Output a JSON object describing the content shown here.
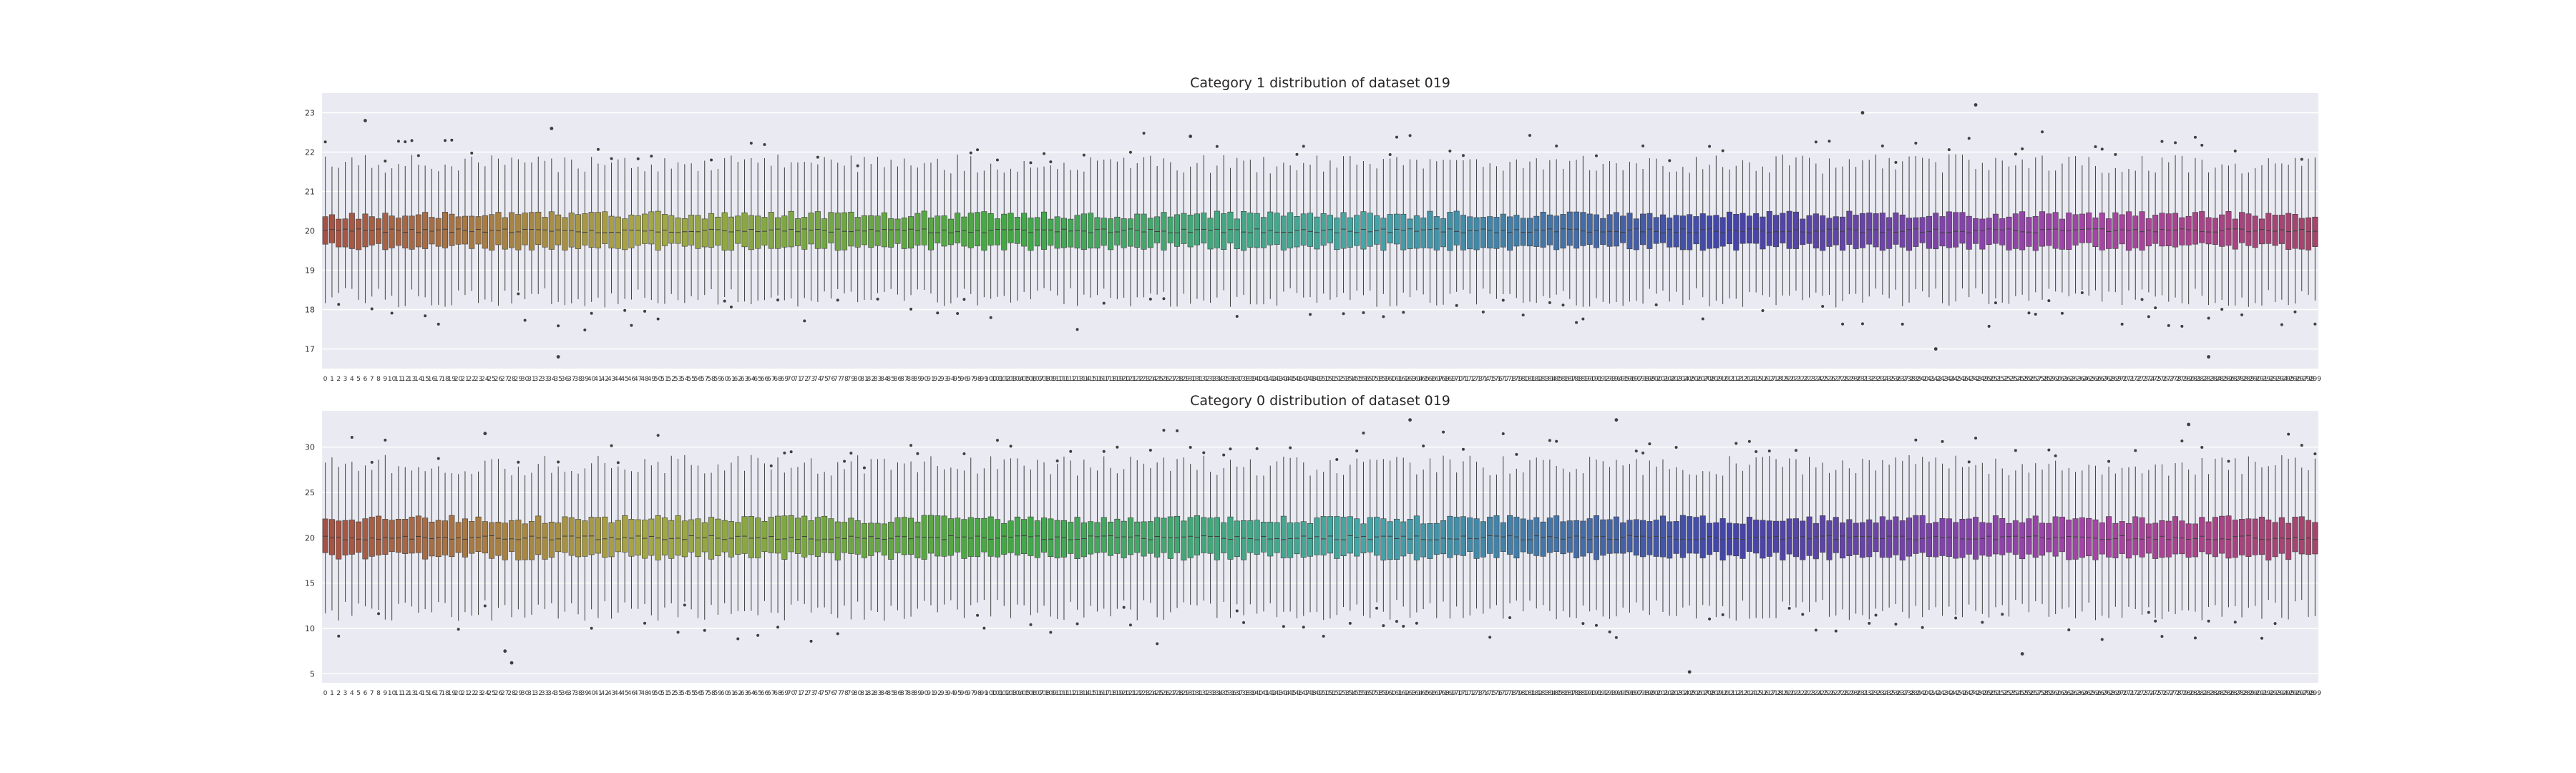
{
  "chart_data": [
    {
      "type": "box",
      "title": "Category 1 distribution of dataset 019",
      "xlabel": "",
      "ylabel": "",
      "ylim": [
        16.5,
        23.5
      ],
      "yticks": [
        17,
        18,
        19,
        20,
        21,
        22,
        23
      ],
      "n_categories": 300,
      "category_labels": "0 … 299",
      "category_label_examples": [
        "0",
        "1",
        "2",
        "3",
        "4",
        "5",
        "6",
        "7",
        "8",
        "9",
        "10"
      ],
      "median_approx": 20.0,
      "q1_approx": 19.6,
      "q3_approx": 20.4,
      "whisker_low_approx": 18.3,
      "whisker_high_approx": 21.7,
      "notable_outliers": [
        {
          "category": "6",
          "value": 22.8
        },
        {
          "category": "34",
          "value": 22.6
        },
        {
          "category": "35",
          "value": 16.8
        },
        {
          "category": "130",
          "value": 22.4
        },
        {
          "category": "242",
          "value": 17.0
        },
        {
          "category": "231",
          "value": 23.0
        },
        {
          "category": "248",
          "value": 23.2
        },
        {
          "category": "283",
          "value": 16.8
        }
      ],
      "grid": true,
      "palette": "husl"
    },
    {
      "type": "box",
      "title": "Category 0 distribution of dataset 019",
      "xlabel": "",
      "ylabel": "",
      "ylim": [
        4,
        34
      ],
      "yticks": [
        5,
        10,
        15,
        20,
        25,
        30
      ],
      "n_categories": 300,
      "category_labels": "0 … 299",
      "category_label_examples": [
        "0",
        "1",
        "2",
        "3",
        "4",
        "5",
        "6",
        "7",
        "8",
        "9",
        "10"
      ],
      "median_approx": 20.0,
      "q1_approx": 18.0,
      "q3_approx": 22.0,
      "whisker_low_approx": 12.0,
      "whisker_high_approx": 28.0,
      "notable_outliers": [
        {
          "category": "24",
          "value": 31.5
        },
        {
          "category": "27",
          "value": 7.5
        },
        {
          "category": "28",
          "value": 6.2
        },
        {
          "category": "163",
          "value": 33.0
        },
        {
          "category": "194",
          "value": 33.0
        },
        {
          "category": "205",
          "value": 5.2
        },
        {
          "category": "255",
          "value": 7.2
        },
        {
          "category": "280",
          "value": 32.5
        }
      ],
      "grid": true,
      "palette": "husl"
    }
  ]
}
